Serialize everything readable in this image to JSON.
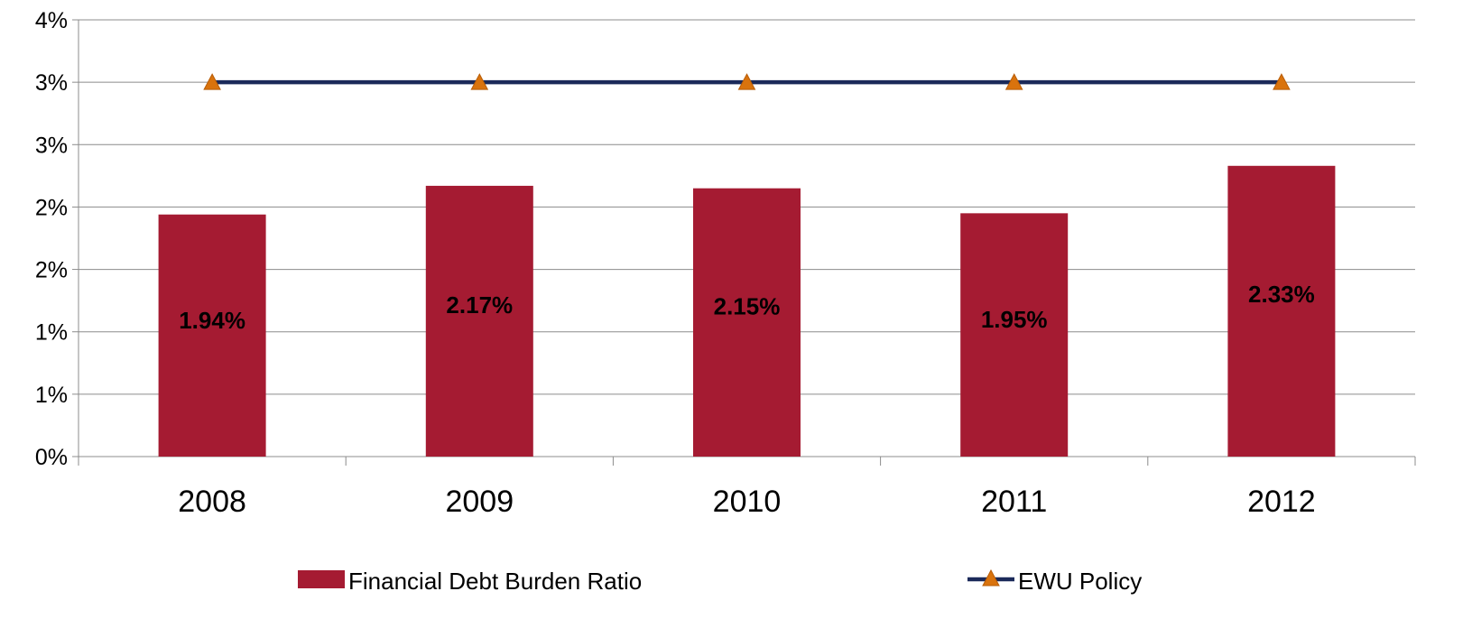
{
  "chart_data": {
    "type": "bar",
    "categories": [
      "2008",
      "2009",
      "2010",
      "2011",
      "2012"
    ],
    "y_tick_labels": [
      "0%",
      "1%",
      "1%",
      "2%",
      "2%",
      "3%",
      "3%",
      "4%"
    ],
    "ylim": [
      0,
      3.5
    ],
    "grid": true,
    "legend_position": "bottom",
    "series": [
      {
        "name": "Financial Debt Burden Ratio",
        "type": "bar",
        "color": "#A51B32",
        "values": [
          1.94,
          2.17,
          2.15,
          1.95,
          2.33
        ],
        "data_labels": [
          "1.94%",
          "2.17%",
          "2.15%",
          "1.95%",
          "2.33%"
        ]
      },
      {
        "name": "EWU Policy",
        "type": "line",
        "color": "#1B2A5A",
        "marker": "triangle",
        "marker_color": "#D9730D",
        "values": [
          3,
          3,
          3,
          3,
          3
        ]
      }
    ]
  }
}
